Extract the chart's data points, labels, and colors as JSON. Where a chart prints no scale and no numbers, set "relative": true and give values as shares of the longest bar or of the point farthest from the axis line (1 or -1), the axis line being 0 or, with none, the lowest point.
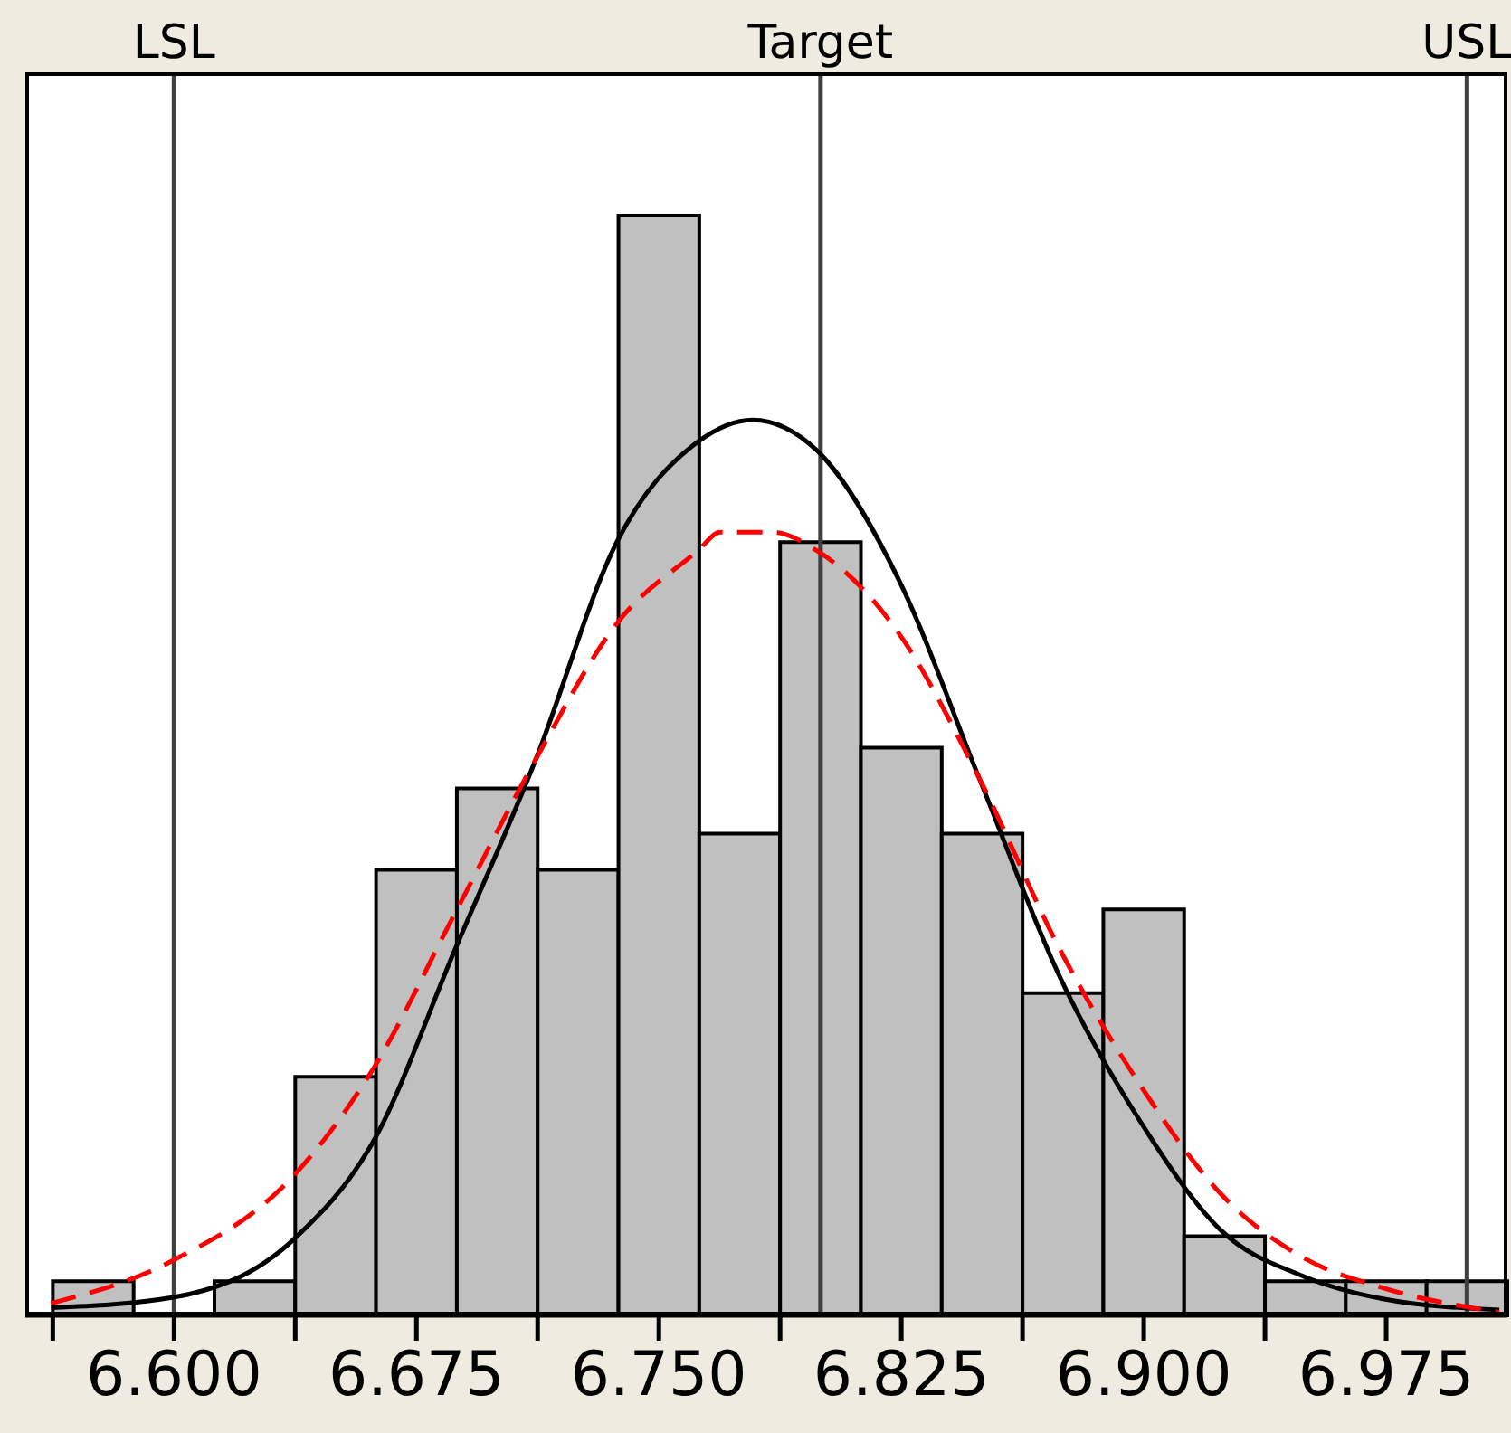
{
  "chart_data": {
    "type": "histogram",
    "relative": true,
    "bins": [
      6.5625,
      6.5875,
      6.6125,
      6.6375,
      6.6625,
      6.6875,
      6.7125,
      6.7375,
      6.7625,
      6.7875,
      6.8125,
      6.8375,
      6.8625,
      6.8875,
      6.9125,
      6.9375,
      6.9625,
      6.9875,
      7.0125
    ],
    "values": [
      0.031,
      0,
      0.031,
      0.217,
      0.405,
      0.479,
      0.405,
      1,
      0.438,
      0.703,
      0.516,
      0.438,
      0.293,
      0.369,
      0.072,
      0.031,
      0.031,
      0.031
    ],
    "color": "#c0c0c0",
    "series": [
      {
        "type": "line",
        "color": "#000000",
        "line_style": "solid",
        "x": [
          6.562,
          6.599,
          6.637,
          6.662,
          6.687,
          6.712,
          6.737,
          6.762,
          6.779,
          6.799,
          6.824,
          6.849,
          6.874,
          6.899,
          6.924,
          6.949,
          6.974,
          7.01
        ],
        "values": [
          0.007,
          0.016,
          0.069,
          0.16,
          0.333,
          0.506,
          0.703,
          0.794,
          0.814,
          0.786,
          0.67,
          0.489,
          0.308,
          0.176,
          0.077,
          0.036,
          0.015,
          0.005
        ]
      },
      {
        "type": "line",
        "color": "#ff0000",
        "line_style": "dashed",
        "x": [
          6.562,
          6.599,
          6.637,
          6.662,
          6.687,
          6.712,
          6.737,
          6.762,
          6.769,
          6.785,
          6.799,
          6.824,
          6.849,
          6.874,
          6.899,
          6.924,
          6.949,
          6.974,
          7.01
        ],
        "values": [
          0.011,
          0.049,
          0.127,
          0.226,
          0.366,
          0.506,
          0.629,
          0.695,
          0.712,
          0.712,
          0.695,
          0.621,
          0.489,
          0.333,
          0.209,
          0.11,
          0.053,
          0.025,
          0.003
        ]
      }
    ],
    "xlim": [
      6.554,
      7.0125
    ],
    "xticks": [
      {
        "value": 6.5625,
        "label": null
      },
      {
        "value": 6.6,
        "label": "6.600"
      },
      {
        "value": 6.6375,
        "label": null
      },
      {
        "value": 6.675,
        "label": "6.675"
      },
      {
        "value": 6.7125,
        "label": null
      },
      {
        "value": 6.75,
        "label": "6.750"
      },
      {
        "value": 6.7875,
        "label": null
      },
      {
        "value": 6.825,
        "label": "6.825"
      },
      {
        "value": 6.8625,
        "label": null
      },
      {
        "value": 6.9,
        "label": "6.900"
      },
      {
        "value": 6.9375,
        "label": null
      },
      {
        "value": 6.975,
        "label": "6.975"
      }
    ],
    "ref_lines": [
      {
        "axis": "x",
        "value": 6.6,
        "label": "LSL",
        "color": "#404040"
      },
      {
        "axis": "x",
        "value": 6.8,
        "label": "Target",
        "color": "#404040"
      },
      {
        "axis": "x",
        "value": 7.0,
        "label": "USL",
        "color": "#404040"
      }
    ],
    "grid": false
  }
}
